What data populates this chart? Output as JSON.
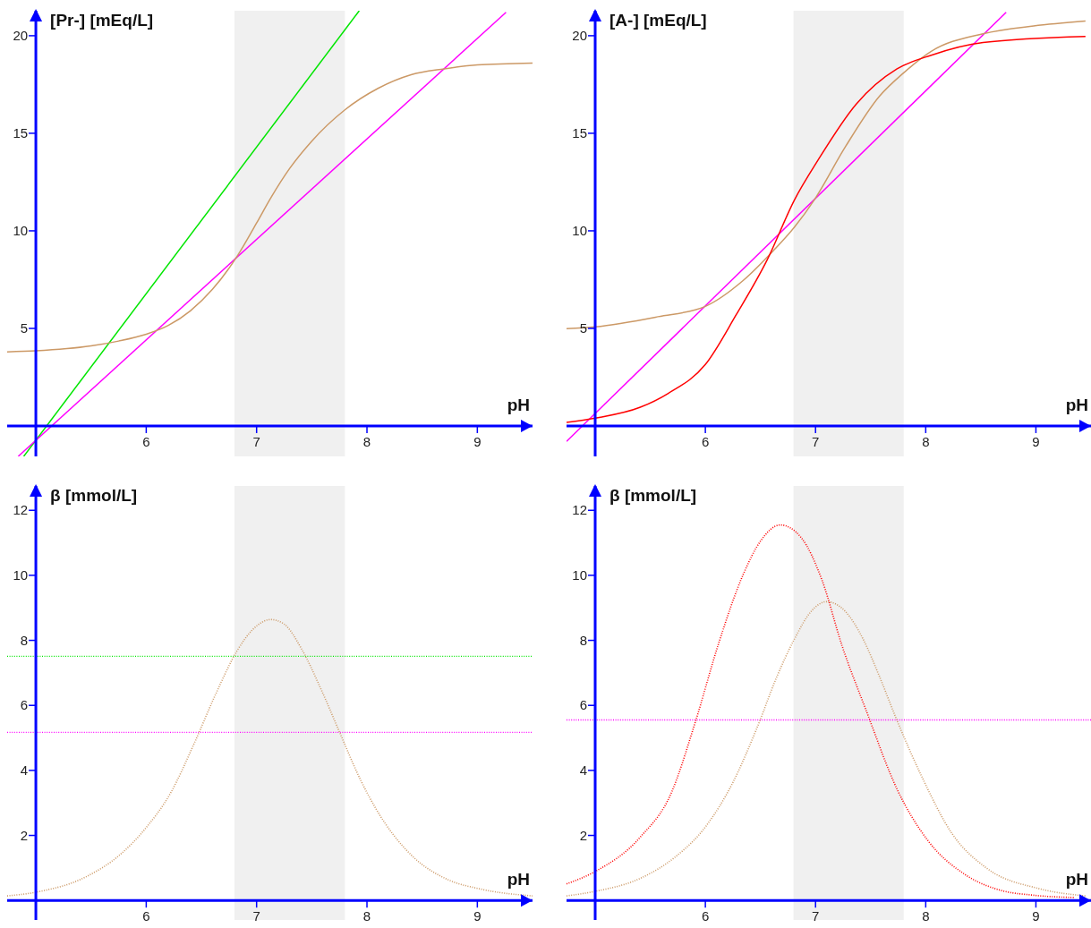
{
  "chart_data": [
    {
      "type": "line",
      "ylabel": "[Pr-] [mEq/L]",
      "xlabel": "pH",
      "xlim": [
        4.74,
        9.5
      ],
      "ylim": [
        -1.56,
        21.28
      ],
      "xticks": [
        6,
        7,
        8,
        9
      ],
      "yticks": [
        5,
        10,
        15,
        20
      ],
      "marker": "none",
      "bands": [
        {
          "axis": "x",
          "from": 6.8,
          "to": 7.8,
          "color": "#f0f0f0"
        }
      ],
      "series": [
        {
          "color": "#00e600",
          "x": [
            4.89,
            7.93
          ],
          "values": [
            -1.56,
            21.28
          ]
        },
        {
          "color": "#ff00ff",
          "x": [
            4.84,
            9.26
          ],
          "values": [
            -1.56,
            21.2
          ]
        },
        {
          "color": "#cc9966",
          "x": [
            4.74,
            5.0,
            5.5,
            5.75,
            6.0,
            6.2,
            6.4,
            6.6,
            6.83,
            7.0,
            7.13,
            7.3,
            7.5,
            7.8,
            8.1,
            8.4,
            8.7,
            9.0,
            9.5
          ],
          "values": [
            3.8,
            3.85,
            4.1,
            4.35,
            4.7,
            5.15,
            5.9,
            7.0,
            8.75,
            10.4,
            11.7,
            13.2,
            14.6,
            16.2,
            17.3,
            18.0,
            18.3,
            18.5,
            18.6
          ]
        }
      ]
    },
    {
      "type": "line",
      "ylabel": "[A-] [mEq/L]",
      "xlabel": "pH",
      "xlim": [
        4.74,
        9.5
      ],
      "ylim": [
        -1.56,
        21.28
      ],
      "xticks": [
        6,
        7,
        8,
        9
      ],
      "yticks": [
        5,
        10,
        15,
        20
      ],
      "marker": "none",
      "bands": [
        {
          "axis": "x",
          "from": 6.8,
          "to": 7.8,
          "color": "#f0f0f0"
        }
      ],
      "series": [
        {
          "color": "#ff00ff",
          "x": [
            4.74,
            8.73
          ],
          "values": [
            -0.79,
            21.2
          ]
        },
        {
          "color": "#cc9966",
          "x": [
            4.74,
            5.0,
            5.57,
            6.0,
            6.34,
            6.62,
            6.81,
            6.99,
            7.27,
            7.58,
            7.8,
            8.05,
            8.52,
            8.98,
            9.45
          ],
          "values": [
            4.99,
            5.08,
            5.6,
            6.13,
            7.44,
            9.0,
            10.2,
            11.6,
            14.3,
            16.9,
            18.1,
            19.2,
            20.1,
            20.5,
            20.75
          ]
        },
        {
          "color": "#ff0000",
          "x": [
            4.74,
            5.0,
            5.41,
            5.66,
            6.0,
            6.28,
            6.56,
            6.81,
            7.02,
            7.37,
            7.74,
            8.05,
            8.52,
            9.45
          ],
          "values": [
            0.18,
            0.4,
            0.96,
            1.66,
            3.15,
            5.7,
            8.5,
            11.6,
            13.6,
            16.5,
            18.3,
            19.0,
            19.65,
            19.96
          ]
        }
      ]
    },
    {
      "type": "line",
      "ylabel": "β [mmol/L]",
      "xlabel": "pH",
      "xlim": [
        4.74,
        9.5
      ],
      "ylim": [
        -0.6,
        12.75
      ],
      "xticks": [
        6,
        7,
        8,
        9
      ],
      "yticks": [
        2,
        4,
        6,
        8,
        10,
        12
      ],
      "marker": "none",
      "bands": [
        {
          "axis": "x",
          "from": 6.8,
          "to": 7.8,
          "color": "#f0f0f0"
        }
      ],
      "ref_lines": [
        {
          "axis": "y",
          "value": 7.51,
          "color": "#00e600",
          "line_style": "dotted"
        },
        {
          "axis": "y",
          "value": 5.17,
          "color": "#ff00ff",
          "line_style": "dotted"
        }
      ],
      "series": [
        {
          "color": "#cc9966",
          "line_style": "dotted",
          "x": [
            4.74,
            5.01,
            5.45,
            5.76,
            6.0,
            6.22,
            6.44,
            6.63,
            6.82,
            6.97,
            7.13,
            7.25,
            7.41,
            7.59,
            7.75,
            7.94,
            8.09,
            8.4,
            8.72,
            9.03,
            9.5
          ],
          "values": [
            0.14,
            0.26,
            0.72,
            1.4,
            2.24,
            3.3,
            4.87,
            6.35,
            7.66,
            8.35,
            8.64,
            8.5,
            7.72,
            6.45,
            5.19,
            3.72,
            2.77,
            1.4,
            0.66,
            0.35,
            0.14
          ]
        }
      ]
    },
    {
      "type": "line",
      "ylabel": "β [mmol/L]",
      "xlabel": "pH",
      "xlim": [
        4.74,
        9.5
      ],
      "ylim": [
        -0.6,
        12.75
      ],
      "xticks": [
        6,
        7,
        8,
        9
      ],
      "yticks": [
        2,
        4,
        6,
        8,
        10,
        12
      ],
      "marker": "none",
      "bands": [
        {
          "axis": "x",
          "from": 6.8,
          "to": 7.8,
          "color": "#f0f0f0"
        }
      ],
      "ref_lines": [
        {
          "axis": "y",
          "value": 5.55,
          "color": "#ff00ff",
          "line_style": "dotted"
        }
      ],
      "series": [
        {
          "color": "#cc9966",
          "line_style": "dotted",
          "x": [
            4.74,
            5.0,
            5.41,
            5.72,
            6.0,
            6.25,
            6.47,
            6.65,
            6.81,
            6.96,
            7.1,
            7.27,
            7.43,
            7.58,
            7.74,
            7.96,
            8.24,
            8.55,
            9.02,
            9.45
          ],
          "values": [
            0.14,
            0.28,
            0.68,
            1.32,
            2.26,
            3.63,
            5.32,
            6.89,
            8.05,
            8.89,
            9.19,
            8.89,
            8.05,
            6.89,
            5.53,
            3.84,
            2.05,
            1.0,
            0.37,
            0.14
          ]
        },
        {
          "color": "#ff0000",
          "line_style": "dotted",
          "x": [
            4.74,
            5.0,
            5.41,
            5.69,
            5.91,
            6.12,
            6.34,
            6.5,
            6.68,
            6.87,
            7.06,
            7.24,
            7.46,
            7.74,
            8.02,
            8.36,
            8.67,
            8.98,
            9.35
          ],
          "values": [
            0.51,
            0.89,
            1.95,
            3.3,
            5.5,
            7.9,
            10.0,
            11.05,
            11.55,
            11.16,
            9.84,
            7.84,
            5.84,
            3.42,
            1.84,
            0.79,
            0.32,
            0.16,
            0.09
          ]
        }
      ]
    }
  ]
}
